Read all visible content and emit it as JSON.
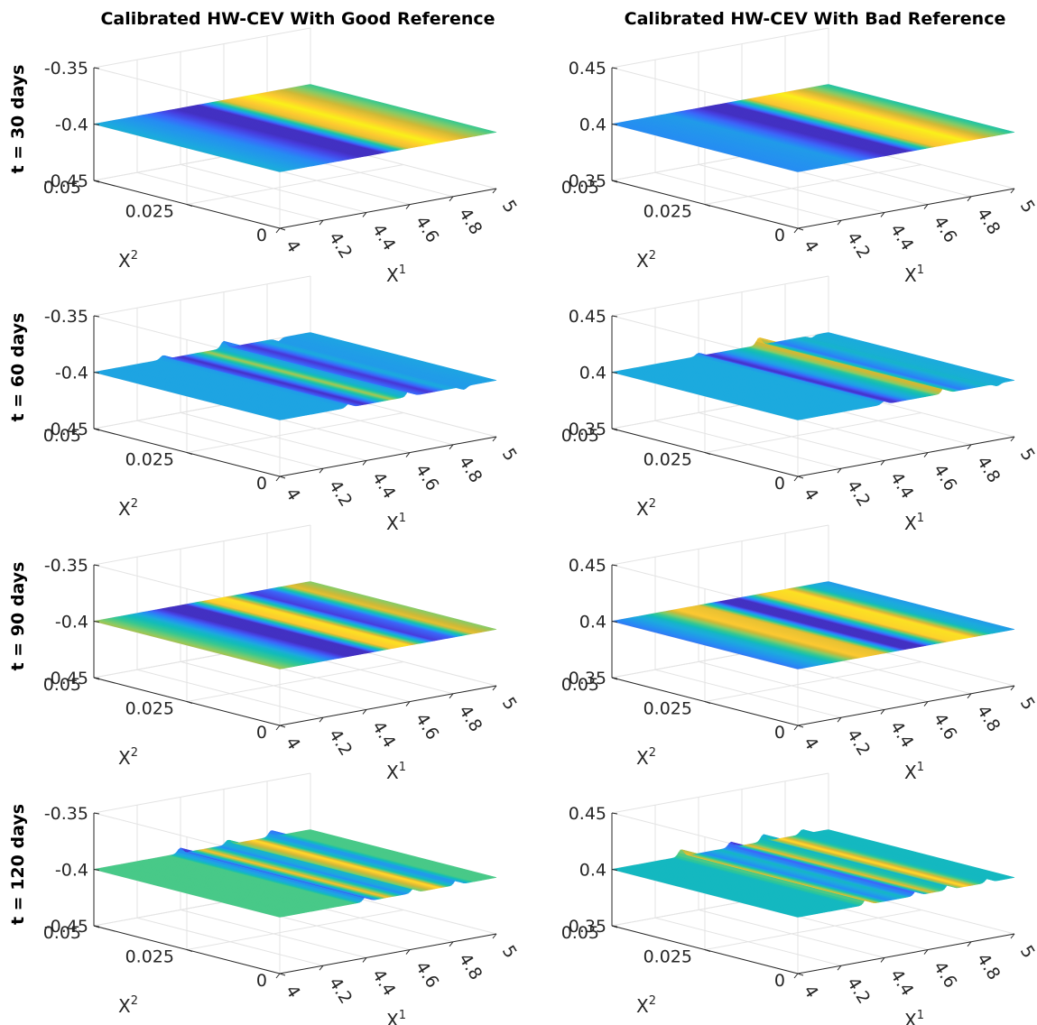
{
  "column_titles": [
    "Calibrated HW-CEV With Good Reference",
    "Calibrated HW-CEV With Bad Reference"
  ],
  "row_titles": [
    "t = 30 days",
    "t = 60 days",
    "t = 90 days",
    "t = 120 days"
  ],
  "chart_data": {
    "type": "surface",
    "layout": "4 rows x 2 columns of 3D surface plots",
    "colormap": "parula",
    "grid": true,
    "x": {
      "label": "X",
      "label_superscript": "1",
      "range": [
        4,
        5
      ],
      "ticks": [
        4,
        4.2,
        4.4,
        4.6,
        4.8,
        5
      ],
      "tick_labels": [
        "4",
        "4.2",
        "4.4",
        "4.6",
        "4.8",
        "5"
      ]
    },
    "y": {
      "label": "X",
      "label_superscript": "2",
      "range": [
        0,
        0.05
      ],
      "ticks": [
        0,
        0.025,
        0.05
      ],
      "tick_labels": [
        "0",
        "0.025",
        "0.05"
      ]
    },
    "z_axes": {
      "good_reference": {
        "range": [
          -0.45,
          -0.35
        ],
        "tick_labels": [
          "-0.45",
          "-0.4",
          "-0.35"
        ]
      },
      "bad_reference": {
        "range": [
          0.35,
          0.45
        ],
        "tick_labels": [
          "0.35",
          "0.4",
          "0.45"
        ]
      }
    },
    "panels": [
      {
        "row": 0,
        "col": 0,
        "column": "Calibrated HW-CEV With Good Reference",
        "row_title": "t = 30 days",
        "z_axis": "good_reference",
        "surface_style": "smooth",
        "color_profile": [
          [
            4.0,
            0.42
          ],
          [
            4.2,
            0.3
          ],
          [
            4.38,
            0.05
          ],
          [
            4.48,
            0.05
          ],
          [
            4.6,
            0.85
          ],
          [
            4.72,
            0.98
          ],
          [
            4.85,
            0.82
          ],
          [
            5.0,
            0.6
          ]
        ]
      },
      {
        "row": 0,
        "col": 1,
        "column": "Calibrated HW-CEV With Bad Reference",
        "row_title": "t = 30 days",
        "z_axis": "bad_reference",
        "surface_style": "smooth",
        "color_profile": [
          [
            4.0,
            0.3
          ],
          [
            4.25,
            0.35
          ],
          [
            4.42,
            0.05
          ],
          [
            4.52,
            0.05
          ],
          [
            4.64,
            0.88
          ],
          [
            4.78,
            0.98
          ],
          [
            4.9,
            0.75
          ],
          [
            5.0,
            0.55
          ]
        ]
      },
      {
        "row": 1,
        "col": 0,
        "column": "Calibrated HW-CEV With Good Reference",
        "row_title": "t = 60 days",
        "z_axis": "good_reference",
        "surface_style": "ridged",
        "color_profile": [
          [
            4.0,
            0.38
          ],
          [
            4.3,
            0.38
          ],
          [
            4.4,
            0.05
          ],
          [
            4.46,
            0.4
          ],
          [
            4.52,
            0.75
          ],
          [
            4.6,
            0.3
          ],
          [
            4.7,
            0.08
          ],
          [
            4.78,
            0.4
          ],
          [
            4.86,
            0.35
          ],
          [
            5.0,
            0.38
          ]
        ],
        "ridges": [
          {
            "x": 4.32,
            "h": 0.5
          },
          {
            "x": 4.6,
            "h": 0.9
          },
          {
            "x": 4.85,
            "h": -0.4
          }
        ]
      },
      {
        "row": 1,
        "col": 1,
        "column": "Calibrated HW-CEV With Bad Reference",
        "row_title": "t = 60 days",
        "z_axis": "bad_reference",
        "surface_style": "ridged",
        "color_profile": [
          [
            4.0,
            0.4
          ],
          [
            4.38,
            0.4
          ],
          [
            4.45,
            0.05
          ],
          [
            4.52,
            0.35
          ],
          [
            4.62,
            0.55
          ],
          [
            4.68,
            0.9
          ],
          [
            4.76,
            0.25
          ],
          [
            4.86,
            0.45
          ],
          [
            5.0,
            0.4
          ]
        ],
        "ridges": [
          {
            "x": 4.4,
            "h": 0.4
          },
          {
            "x": 4.68,
            "h": 0.95
          },
          {
            "x": 4.92,
            "h": -0.3
          }
        ]
      },
      {
        "row": 2,
        "col": 0,
        "column": "Calibrated HW-CEV With Good Reference",
        "row_title": "t = 90 days",
        "z_axis": "good_reference",
        "surface_style": "smooth",
        "color_profile": [
          [
            4.0,
            0.75
          ],
          [
            4.18,
            0.45
          ],
          [
            4.32,
            0.05
          ],
          [
            4.42,
            0.05
          ],
          [
            4.52,
            0.9
          ],
          [
            4.6,
            0.95
          ],
          [
            4.72,
            0.1
          ],
          [
            4.8,
            0.2
          ],
          [
            4.9,
            0.85
          ],
          [
            5.0,
            0.7
          ]
        ]
      },
      {
        "row": 2,
        "col": 1,
        "column": "Calibrated HW-CEV With Bad Reference",
        "row_title": "t = 90 days",
        "z_axis": "bad_reference",
        "surface_style": "smooth",
        "color_profile": [
          [
            4.0,
            0.25
          ],
          [
            4.15,
            0.45
          ],
          [
            4.3,
            0.9
          ],
          [
            4.4,
            0.85
          ],
          [
            4.5,
            0.05
          ],
          [
            4.58,
            0.05
          ],
          [
            4.7,
            0.92
          ],
          [
            4.8,
            0.95
          ],
          [
            4.9,
            0.45
          ],
          [
            5.0,
            0.35
          ]
        ]
      },
      {
        "row": 3,
        "col": 0,
        "column": "Calibrated HW-CEV With Good Reference",
        "row_title": "t = 120 days",
        "z_axis": "good_reference",
        "surface_style": "ridged",
        "color_profile": [
          [
            4.0,
            0.62
          ],
          [
            4.35,
            0.62
          ],
          [
            4.42,
            0.05
          ],
          [
            4.5,
            0.9
          ],
          [
            4.58,
            0.3
          ],
          [
            4.64,
            0.62
          ],
          [
            4.74,
            0.95
          ],
          [
            4.82,
            0.2
          ],
          [
            4.9,
            0.62
          ],
          [
            5.0,
            0.62
          ]
        ],
        "ridges": [
          {
            "x": 4.4,
            "h": 0.7
          },
          {
            "x": 4.62,
            "h": 0.6
          },
          {
            "x": 4.82,
            "h": 0.8
          }
        ]
      },
      {
        "row": 3,
        "col": 1,
        "column": "Calibrated HW-CEV With Bad Reference",
        "row_title": "t = 120 days",
        "z_axis": "bad_reference",
        "surface_style": "ridged",
        "color_profile": [
          [
            4.0,
            0.48
          ],
          [
            4.28,
            0.48
          ],
          [
            4.35,
            0.9
          ],
          [
            4.42,
            0.3
          ],
          [
            4.5,
            0.48
          ],
          [
            4.56,
            0.05
          ],
          [
            4.62,
            0.85
          ],
          [
            4.7,
            0.4
          ],
          [
            4.78,
            0.95
          ],
          [
            4.86,
            0.48
          ],
          [
            5.0,
            0.48
          ]
        ],
        "ridges": [
          {
            "x": 4.32,
            "h": 0.9
          },
          {
            "x": 4.55,
            "h": 0.7
          },
          {
            "x": 4.7,
            "h": 0.9
          },
          {
            "x": 4.88,
            "h": 0.6
          }
        ]
      }
    ]
  }
}
